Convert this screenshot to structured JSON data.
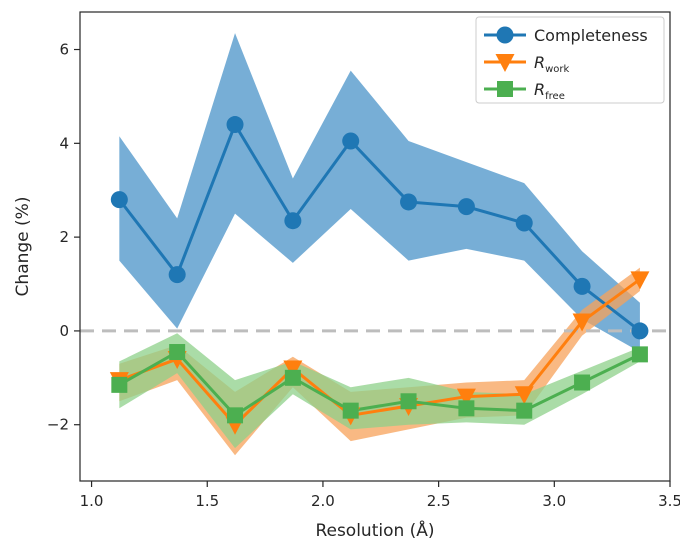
{
  "chart_data": {
    "type": "line",
    "xlabel": "Resolution (Å)",
    "ylabel": "Change (%)",
    "xlim": [
      0.95,
      3.5
    ],
    "ylim": [
      -3.2,
      6.8
    ],
    "xticks": [
      1.0,
      1.5,
      2.0,
      2.5,
      3.0,
      3.5
    ],
    "xtick_labels": [
      "1.0",
      "1.5",
      "2.0",
      "2.5",
      "3.0",
      "3.5"
    ],
    "yticks": [
      -2,
      0,
      2,
      4,
      6
    ],
    "ytick_labels": [
      "−2",
      "0",
      "2",
      "4",
      "6"
    ],
    "reference_line": {
      "y": 0,
      "style": "dashed",
      "color": "#bdbdbd"
    },
    "legend_position": "top-right",
    "series": [
      {
        "name": "Completeness",
        "legend_main": "Completeness",
        "legend_sub": "",
        "color": "#1f77b4",
        "band_color": "#5fa0cf",
        "marker": "circle",
        "x": [
          1.12,
          1.37,
          1.62,
          1.87,
          2.12,
          2.37,
          2.62,
          2.87,
          3.12,
          3.37
        ],
        "y": [
          2.8,
          1.2,
          4.4,
          2.35,
          4.05,
          2.75,
          2.65,
          2.3,
          0.95,
          0.0
        ],
        "lower": [
          1.5,
          0.05,
          2.5,
          1.45,
          2.6,
          1.5,
          1.75,
          1.5,
          0.25,
          -0.45
        ],
        "upper": [
          4.15,
          2.4,
          6.35,
          3.25,
          5.55,
          4.05,
          3.6,
          3.15,
          1.7,
          0.6
        ]
      },
      {
        "name": "Rwork",
        "legend_main": "R",
        "legend_sub": "work",
        "color": "#ff7f0e",
        "band_color": "#f7a15a",
        "marker": "triangle-down",
        "x": [
          1.12,
          1.37,
          1.62,
          1.87,
          2.12,
          2.37,
          2.62,
          2.87,
          3.12,
          3.37
        ],
        "y": [
          -1.05,
          -0.6,
          -2.0,
          -0.8,
          -1.8,
          -1.6,
          -1.4,
          -1.35,
          0.2,
          1.1
        ],
        "lower": [
          -1.5,
          -1.05,
          -2.65,
          -1.2,
          -2.35,
          -2.1,
          -1.85,
          -1.8,
          -0.1,
          0.85
        ],
        "upper": [
          -0.7,
          -0.3,
          -1.3,
          -0.55,
          -1.3,
          -1.2,
          -1.1,
          -1.05,
          0.45,
          1.35
        ]
      },
      {
        "name": "Rfree",
        "legend_main": "R",
        "legend_sub": "free",
        "color": "#4caf50",
        "band_color": "#8ed08a",
        "marker": "square",
        "x": [
          1.12,
          1.37,
          1.62,
          1.87,
          2.12,
          2.37,
          2.62,
          2.87,
          3.12,
          3.37
        ],
        "y": [
          -1.15,
          -0.45,
          -1.8,
          -1.0,
          -1.7,
          -1.5,
          -1.65,
          -1.7,
          -1.1,
          -0.5
        ],
        "lower": [
          -1.65,
          -0.9,
          -2.5,
          -1.35,
          -2.1,
          -2.0,
          -1.95,
          -2.0,
          -1.35,
          -0.65
        ],
        "upper": [
          -0.65,
          -0.05,
          -1.05,
          -0.65,
          -1.2,
          -1.0,
          -1.3,
          -1.35,
          -0.85,
          -0.35
        ]
      }
    ]
  }
}
